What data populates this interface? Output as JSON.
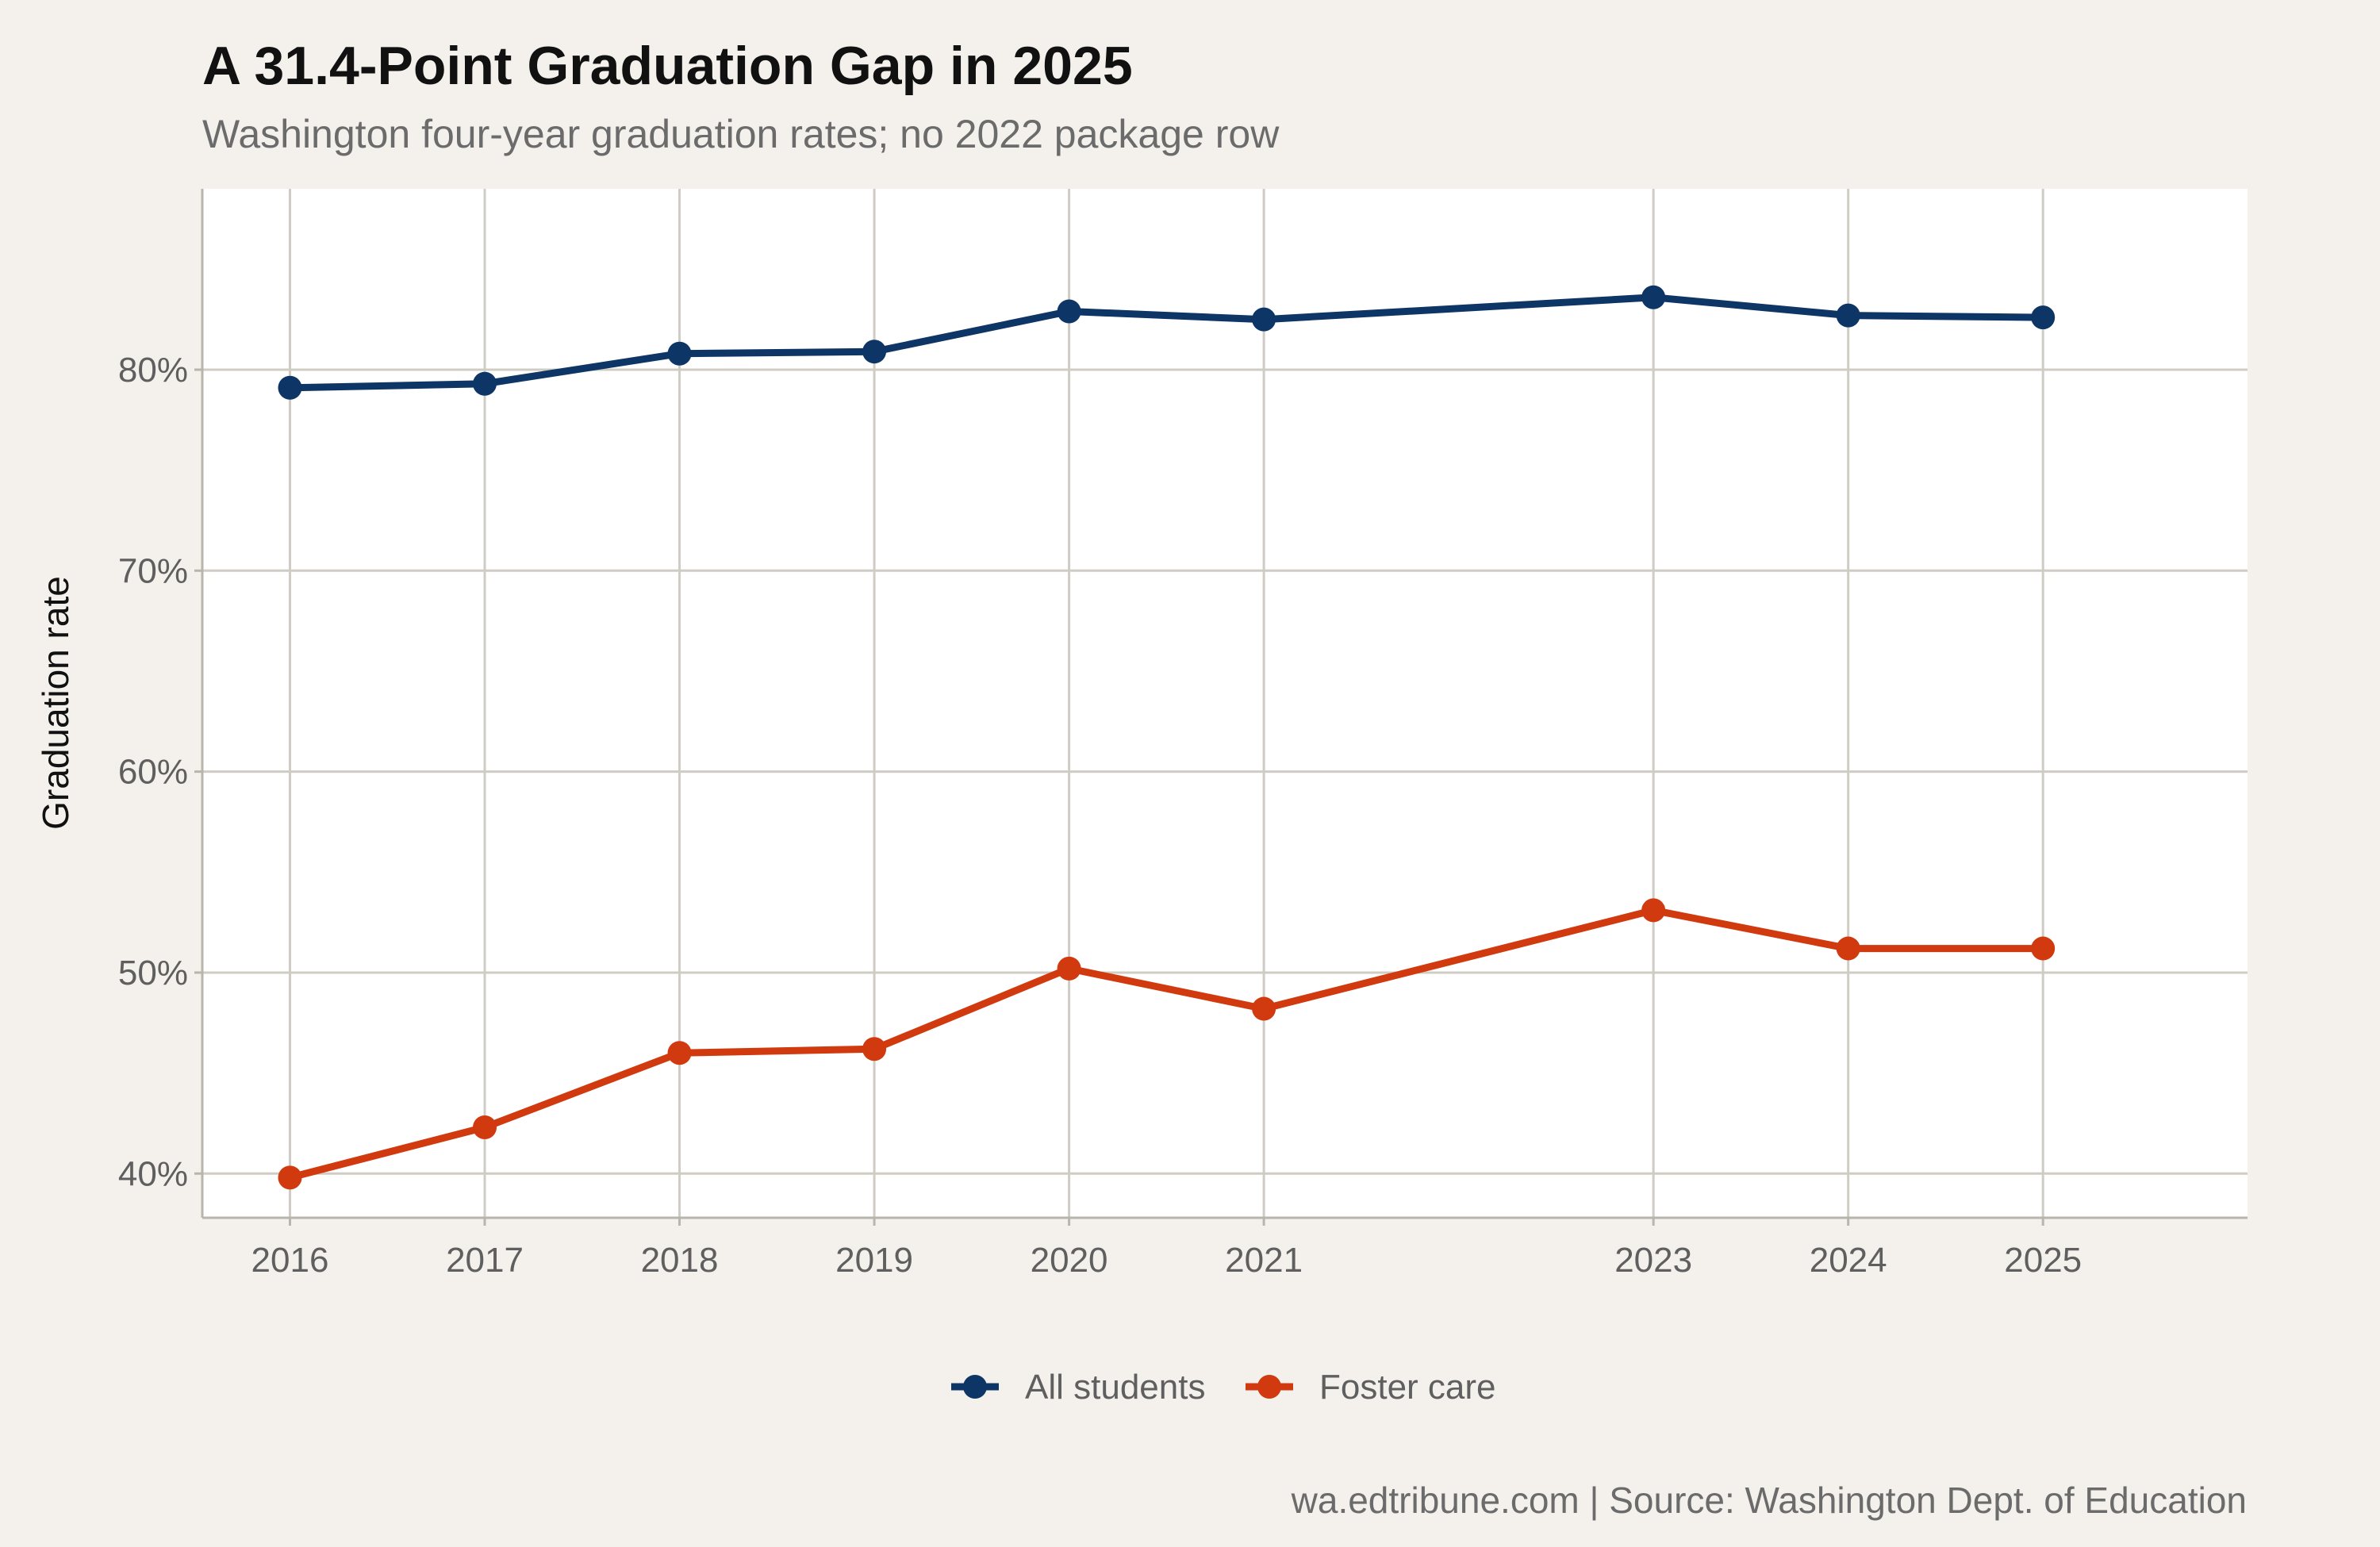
{
  "chart_data": {
    "type": "line",
    "title": "A 31.4-Point Graduation Gap in 2025",
    "subtitle": "Washington four-year graduation rates; no 2022 package row",
    "caption": "wa.edtribune.com | Source: Washington Dept. of Education",
    "ylabel": "Graduation rate",
    "xlabel": "",
    "x": [
      2016,
      2017,
      2018,
      2019,
      2020,
      2021,
      2023,
      2024,
      2025
    ],
    "x_tick_labels": [
      "2016",
      "2017",
      "2018",
      "2019",
      "2020",
      "2021",
      "2023",
      "2024",
      "2025"
    ],
    "y_ticks": [
      40,
      50,
      60,
      70,
      80
    ],
    "y_tick_labels": [
      "40%",
      "50%",
      "60%",
      "70%",
      "80%"
    ],
    "xlim": [
      2015.55,
      2026.05
    ],
    "ylim": [
      37.8,
      89.0
    ],
    "grid": true,
    "legend_position": "bottom",
    "series": [
      {
        "name": "All students",
        "color": "#0d3566",
        "values": [
          79.1,
          79.3,
          80.8,
          80.9,
          82.9,
          82.5,
          83.6,
          82.7,
          82.6
        ]
      },
      {
        "name": "Foster care",
        "color": "#d1390f",
        "values": [
          39.8,
          42.3,
          46.0,
          46.2,
          50.2,
          48.2,
          53.1,
          51.2,
          51.2
        ]
      }
    ]
  },
  "colors": {
    "background": "#f4f1ec",
    "panel": "#ffffff",
    "grid": "#cfccc4"
  }
}
